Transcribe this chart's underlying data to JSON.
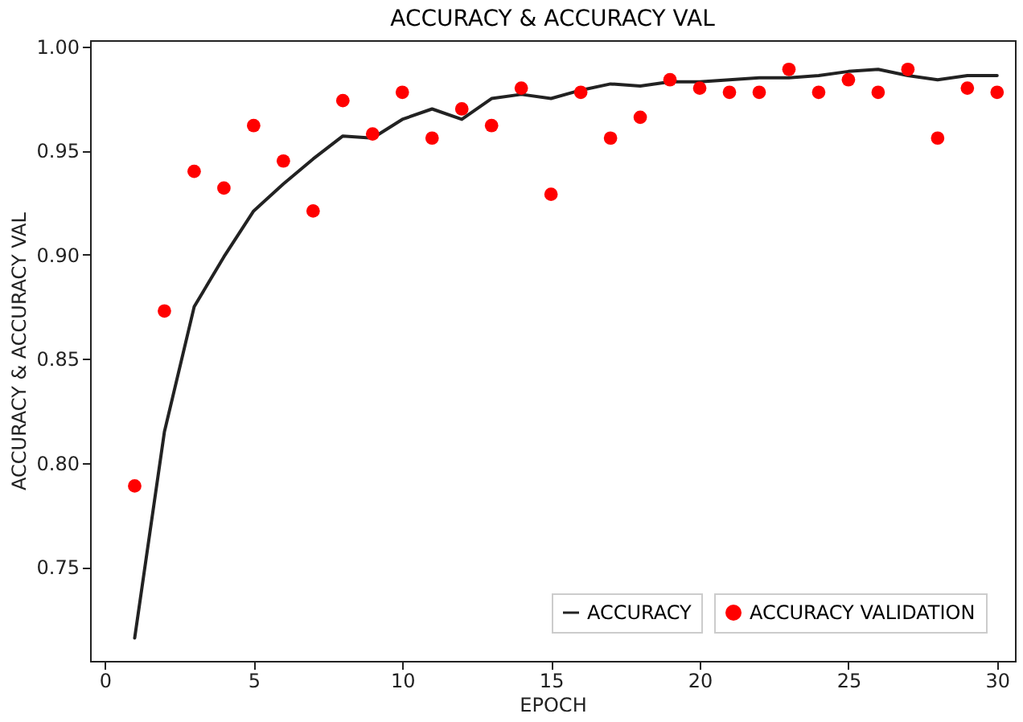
{
  "chart_data": {
    "type": "line",
    "title": "ACCURACY & ACCURACY VAL",
    "xlabel": "EPOCH",
    "ylabel": "ACCURACY & ACCURACY VAL",
    "x": [
      1,
      2,
      3,
      4,
      5,
      6,
      7,
      8,
      9,
      10,
      11,
      12,
      13,
      14,
      15,
      16,
      17,
      18,
      19,
      20,
      21,
      22,
      23,
      24,
      25,
      26,
      27,
      28,
      29,
      30
    ],
    "series": [
      {
        "name": "ACCURACY",
        "color": "#222222",
        "line_style": "solid",
        "values": [
          0.716,
          0.815,
          0.875,
          0.899,
          0.921,
          0.934,
          0.946,
          0.957,
          0.956,
          0.965,
          0.97,
          0.965,
          0.975,
          0.977,
          0.975,
          0.979,
          0.982,
          0.981,
          0.983,
          0.983,
          0.984,
          0.985,
          0.985,
          0.986,
          0.988,
          0.989,
          0.986,
          0.984,
          0.986,
          0.986
        ]
      },
      {
        "name": "ACCURACY VALIDATION",
        "type": "scatter",
        "color": "#ff0000",
        "marker": "circle",
        "values": [
          0.789,
          0.873,
          0.94,
          0.932,
          0.962,
          0.945,
          0.921,
          0.974,
          0.958,
          0.978,
          0.956,
          0.97,
          0.962,
          0.98,
          0.929,
          0.978,
          0.956,
          0.966,
          0.984,
          0.98,
          0.978,
          0.978,
          0.989,
          0.978,
          0.984,
          0.978,
          0.989,
          0.956,
          0.98,
          0.978
        ]
      }
    ],
    "xlim": [
      -0.5,
      30.6
    ],
    "ylim": [
      0.705,
      1.003
    ],
    "xticks": [
      0,
      5,
      10,
      15,
      20,
      25,
      30
    ],
    "yticks": [
      0.75,
      {
        "value": 0.8,
        "label": "0.80"
      },
      0.85,
      {
        "value": 0.9,
        "label": "0.90"
      },
      0.95,
      {
        "value": 1.0,
        "label": "1.00"
      }
    ],
    "grid": false,
    "legend": "bottom right"
  }
}
